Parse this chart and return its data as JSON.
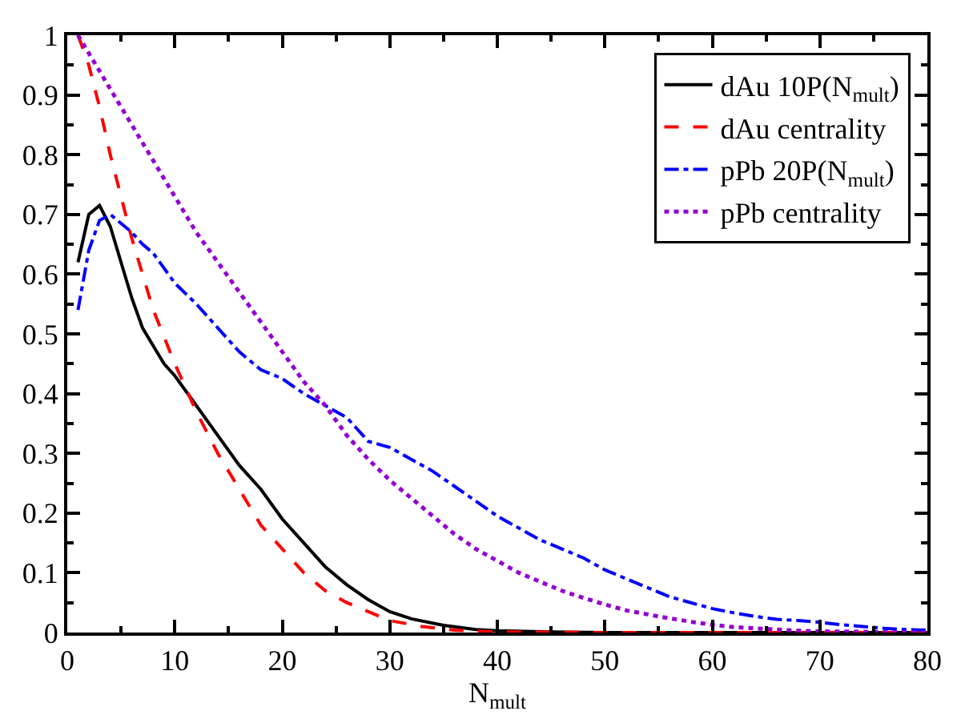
{
  "chart_data": {
    "type": "line",
    "xlabel": "N$_{mult}$",
    "xlim": [
      0,
      80
    ],
    "xticks": [
      0,
      10,
      20,
      30,
      40,
      50,
      60,
      70,
      80
    ],
    "ylim": [
      0,
      1
    ],
    "yticks": [
      0,
      0.1,
      0.2,
      0.3,
      0.4,
      0.5,
      0.6,
      0.7,
      0.8,
      0.9,
      1
    ],
    "legend": "top right",
    "marker": "none",
    "series": [
      {
        "name": "dAu 10P(N$_{mult}$)",
        "color": "#000000",
        "line_style": "solid",
        "x": [
          1,
          2,
          3,
          4,
          5,
          6,
          7,
          8,
          9,
          10,
          12,
          14,
          16,
          18,
          20,
          22,
          24,
          26,
          28,
          30,
          32,
          35,
          38,
          40,
          45,
          50,
          60,
          80
        ],
        "values": [
          0.62,
          0.7,
          0.715,
          0.68,
          0.62,
          0.56,
          0.51,
          0.48,
          0.45,
          0.43,
          0.38,
          0.33,
          0.28,
          0.24,
          0.19,
          0.15,
          0.11,
          0.08,
          0.055,
          0.035,
          0.023,
          0.012,
          0.005,
          0.003,
          0.001,
          0,
          0,
          0
        ]
      },
      {
        "name": "dAu centrality",
        "color": "#ff0000",
        "line_style": "dashed",
        "x": [
          1,
          2,
          3,
          4,
          5,
          6,
          7,
          8,
          10,
          12,
          14,
          16,
          18,
          20,
          22,
          24,
          26,
          28,
          30,
          33,
          36,
          40,
          50,
          80
        ],
        "values": [
          1.0,
          0.95,
          0.88,
          0.8,
          0.73,
          0.66,
          0.6,
          0.54,
          0.45,
          0.37,
          0.3,
          0.24,
          0.18,
          0.14,
          0.1,
          0.07,
          0.05,
          0.035,
          0.02,
          0.01,
          0.004,
          0.001,
          0,
          0
        ]
      },
      {
        "name": "pPb 20P(N$_{mult}$)",
        "color": "#0000ff",
        "line_style": "dashdot",
        "x": [
          1,
          2,
          3,
          4,
          5,
          6,
          7,
          8,
          9,
          10,
          12,
          14,
          16,
          18,
          20,
          22,
          24,
          26,
          28,
          30,
          32,
          34,
          36,
          38,
          40,
          42,
          44,
          46,
          48,
          50,
          52,
          54,
          56,
          58,
          60,
          62,
          64,
          66,
          68,
          70,
          72,
          74,
          76,
          78,
          80
        ],
        "values": [
          0.54,
          0.64,
          0.69,
          0.7,
          0.685,
          0.67,
          0.65,
          0.635,
          0.61,
          0.585,
          0.55,
          0.51,
          0.47,
          0.44,
          0.425,
          0.4,
          0.38,
          0.36,
          0.32,
          0.31,
          0.29,
          0.27,
          0.245,
          0.22,
          0.195,
          0.175,
          0.155,
          0.14,
          0.125,
          0.105,
          0.09,
          0.075,
          0.06,
          0.05,
          0.04,
          0.033,
          0.027,
          0.022,
          0.02,
          0.017,
          0.013,
          0.01,
          0.007,
          0.005,
          0.004
        ]
      },
      {
        "name": "pPb centrality",
        "color": "#9400d3",
        "line_style": "dotted",
        "x": [
          1,
          2,
          4,
          6,
          8,
          10,
          12,
          14,
          16,
          18,
          20,
          22,
          24,
          26,
          28,
          30,
          32,
          34,
          36,
          38,
          40,
          42,
          44,
          46,
          48,
          50,
          52,
          55,
          58,
          60,
          62,
          65,
          68,
          70,
          75,
          80
        ],
        "values": [
          1.0,
          0.97,
          0.91,
          0.85,
          0.79,
          0.73,
          0.67,
          0.62,
          0.57,
          0.52,
          0.47,
          0.42,
          0.38,
          0.33,
          0.29,
          0.255,
          0.225,
          0.195,
          0.165,
          0.14,
          0.12,
          0.1,
          0.085,
          0.07,
          0.058,
          0.047,
          0.037,
          0.027,
          0.018,
          0.013,
          0.009,
          0.006,
          0.003,
          0.002,
          0.001,
          0
        ]
      }
    ]
  }
}
